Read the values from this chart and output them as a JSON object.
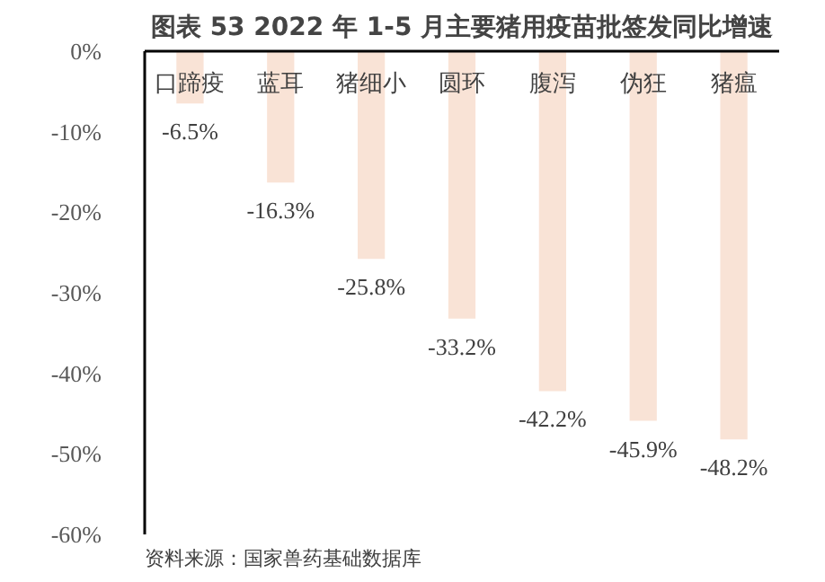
{
  "chart_data": {
    "type": "bar",
    "title": "图表 53 2022 年 1-5 月主要猪用疫苗批签发同比增速",
    "categories": [
      "口蹄疫",
      "蓝耳",
      "猪细小",
      "圆环",
      "腹泻",
      "伪狂",
      "猪瘟"
    ],
    "values": [
      -6.5,
      -16.3,
      -25.8,
      -33.2,
      -42.2,
      -45.9,
      -48.2
    ],
    "value_labels": [
      "-6.5%",
      "-16.3%",
      "-25.8%",
      "-33.2%",
      "-42.2%",
      "-45.9%",
      "-48.2%"
    ],
    "color": "#f9e3d6",
    "ylim": [
      -60,
      0
    ],
    "yticks": [
      {
        "value": 0,
        "label": "0%"
      },
      {
        "value": -10,
        "label": "-10%"
      },
      {
        "value": -20,
        "label": "-20%"
      },
      {
        "value": -30,
        "label": "-30%"
      },
      {
        "value": -40,
        "label": "-40%"
      },
      {
        "value": -50,
        "label": "-50%"
      },
      {
        "value": -60,
        "label": "-60%"
      }
    ],
    "grid": false,
    "annotations": [
      "资料来源：国家兽药基础数据库"
    ]
  }
}
